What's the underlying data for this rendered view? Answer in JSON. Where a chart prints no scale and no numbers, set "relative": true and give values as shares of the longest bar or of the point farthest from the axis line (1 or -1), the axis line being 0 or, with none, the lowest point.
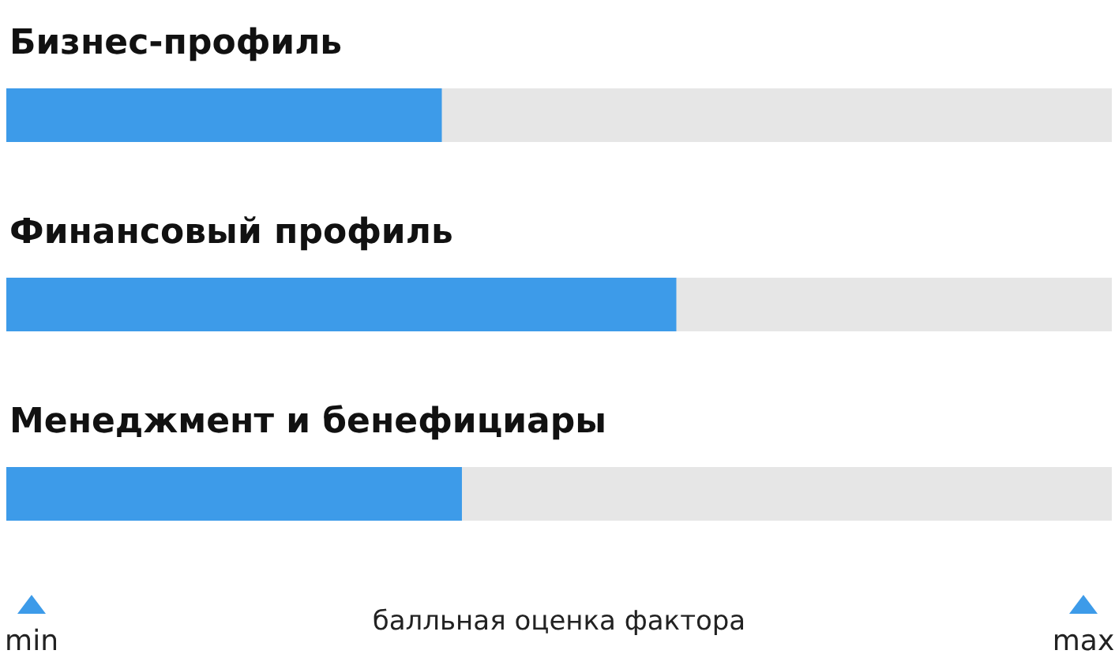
{
  "chart_data": {
    "type": "bar",
    "orientation": "horizontal",
    "relative": true,
    "categories": [
      "Бизнес-профиль",
      "Финансовый профиль",
      "Менеджмент и бенефициары"
    ],
    "values": [
      0.65,
      1,
      0.68
    ],
    "color": "#3d9be9",
    "xlabel": "балльная оценка фактора",
    "annotations": [
      "min",
      "max"
    ],
    "bands": [
      {
        "axis": "x",
        "from": 0,
        "to": 1.65,
        "color": "#e6e6e6"
      }
    ]
  }
}
